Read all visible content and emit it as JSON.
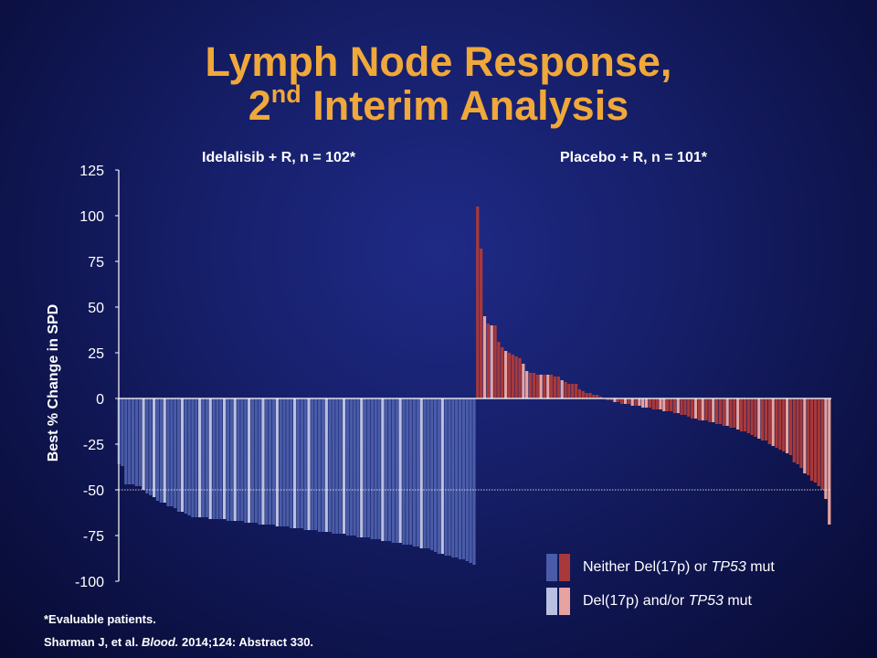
{
  "slide": {
    "title_line1": "Lymph Node Response,",
    "title_line2_pre": "2",
    "title_line2_sup": "nd",
    "title_line2_post": " Interim Analysis",
    "footnote": "*Evaluable patients.",
    "citation_pre": "Sharman J, et al. ",
    "citation_journal": "Blood.",
    "citation_post": " 2014;124: Abstract 330."
  },
  "legend": {
    "items": [
      {
        "label_pre": "Neither Del(17p) or ",
        "label_italic": "TP53",
        "label_post": " mut",
        "colors": [
          "#4a5ca8",
          "#a8393a"
        ]
      },
      {
        "label_pre": "Del(17p) and/or ",
        "label_italic": "TP53",
        "label_post": " mut",
        "colors": [
          "#b9c0e2",
          "#e7a3a0"
        ]
      }
    ]
  },
  "chart_data": {
    "type": "bar",
    "ylabel": "Best % Change in SPD",
    "ylim": [
      -100,
      125
    ],
    "yticks": [
      125,
      100,
      75,
      50,
      25,
      0,
      -25,
      -50,
      -75,
      -100
    ],
    "reference_line": -50,
    "groups": [
      {
        "name": "Idelalisib  + R, n = 102*",
        "color_neither": "#4a5ca8",
        "color_del17p": "#b9c0e2",
        "values": [
          -36,
          -37,
          -47,
          -47,
          -47,
          -48,
          -48,
          -50,
          -52,
          -53,
          -54,
          -56,
          -57,
          -57,
          -59,
          -59,
          -60,
          -62,
          -62,
          -63,
          -64,
          -65,
          -65,
          -65,
          -65,
          -65,
          -66,
          -66,
          -66,
          -66,
          -66,
          -67,
          -67,
          -67,
          -67,
          -67,
          -68,
          -68,
          -68,
          -68,
          -69,
          -69,
          -69,
          -69,
          -69,
          -70,
          -70,
          -70,
          -70,
          -71,
          -71,
          -71,
          -71,
          -72,
          -72,
          -72,
          -72,
          -73,
          -73,
          -73,
          -73,
          -74,
          -74,
          -74,
          -74,
          -75,
          -75,
          -75,
          -76,
          -76,
          -76,
          -76,
          -77,
          -77,
          -77,
          -78,
          -78,
          -78,
          -79,
          -79,
          -79,
          -80,
          -80,
          -80,
          -81,
          -81,
          -82,
          -82,
          -82,
          -83,
          -84,
          -85,
          -85,
          -86,
          -86,
          -87,
          -87,
          -88,
          -88,
          -89,
          -90,
          -91
        ],
        "del17p_flags": [
          0,
          0,
          0,
          0,
          0,
          0,
          0,
          1,
          0,
          0,
          1,
          0,
          0,
          1,
          0,
          0,
          0,
          0,
          1,
          0,
          0,
          0,
          0,
          1,
          0,
          0,
          1,
          0,
          0,
          0,
          1,
          0,
          0,
          1,
          0,
          0,
          0,
          1,
          0,
          0,
          0,
          1,
          0,
          0,
          0,
          1,
          0,
          0,
          0,
          0,
          1,
          0,
          0,
          0,
          1,
          0,
          0,
          0,
          0,
          1,
          0,
          0,
          0,
          0,
          1,
          0,
          0,
          0,
          0,
          1,
          0,
          0,
          0,
          0,
          0,
          1,
          0,
          0,
          0,
          0,
          1,
          0,
          0,
          0,
          0,
          0,
          1,
          0,
          0,
          0,
          0,
          0,
          1,
          0,
          0,
          0,
          0,
          0,
          0,
          0,
          0,
          0
        ]
      },
      {
        "name": "Placebo  + R, n = 101*",
        "color_neither": "#a8393a",
        "color_del17p": "#e7a3a0",
        "values": [
          105,
          82,
          45,
          41,
          40,
          40,
          31,
          28,
          26,
          25,
          24,
          23,
          22,
          19,
          15,
          14,
          14,
          13,
          13,
          13,
          13,
          13,
          12,
          12,
          10,
          9,
          8,
          8,
          8,
          5,
          4,
          3,
          3,
          2,
          2,
          1,
          0,
          -1,
          -1,
          -2,
          -2,
          -3,
          -3,
          -3,
          -4,
          -4,
          -4,
          -5,
          -5,
          -5,
          -6,
          -6,
          -6,
          -7,
          -7,
          -7,
          -8,
          -8,
          -9,
          -9,
          -10,
          -11,
          -11,
          -12,
          -12,
          -12,
          -13,
          -13,
          -14,
          -14,
          -15,
          -15,
          -16,
          -16,
          -17,
          -18,
          -18,
          -19,
          -20,
          -21,
          -22,
          -23,
          -23,
          -25,
          -26,
          -27,
          -28,
          -29,
          -30,
          -31,
          -35,
          -36,
          -38,
          -41,
          -42,
          -45,
          -46,
          -48,
          -50,
          -55,
          -69
        ],
        "del17p_flags": [
          0,
          0,
          1,
          0,
          1,
          0,
          0,
          0,
          1,
          0,
          0,
          0,
          0,
          1,
          1,
          0,
          0,
          0,
          1,
          0,
          1,
          0,
          0,
          0,
          1,
          0,
          0,
          0,
          0,
          0,
          0,
          0,
          0,
          0,
          0,
          0,
          0,
          0,
          0,
          1,
          0,
          0,
          1,
          0,
          1,
          0,
          1,
          1,
          1,
          0,
          0,
          0,
          1,
          1,
          0,
          0,
          0,
          1,
          0,
          0,
          0,
          0,
          1,
          0,
          1,
          0,
          0,
          1,
          0,
          0,
          0,
          1,
          0,
          0,
          1,
          0,
          0,
          0,
          0,
          0,
          1,
          0,
          0,
          0,
          1,
          0,
          0,
          0,
          1,
          0,
          0,
          0,
          0,
          1,
          0,
          0,
          0,
          0,
          0,
          1,
          1
        ]
      }
    ]
  }
}
